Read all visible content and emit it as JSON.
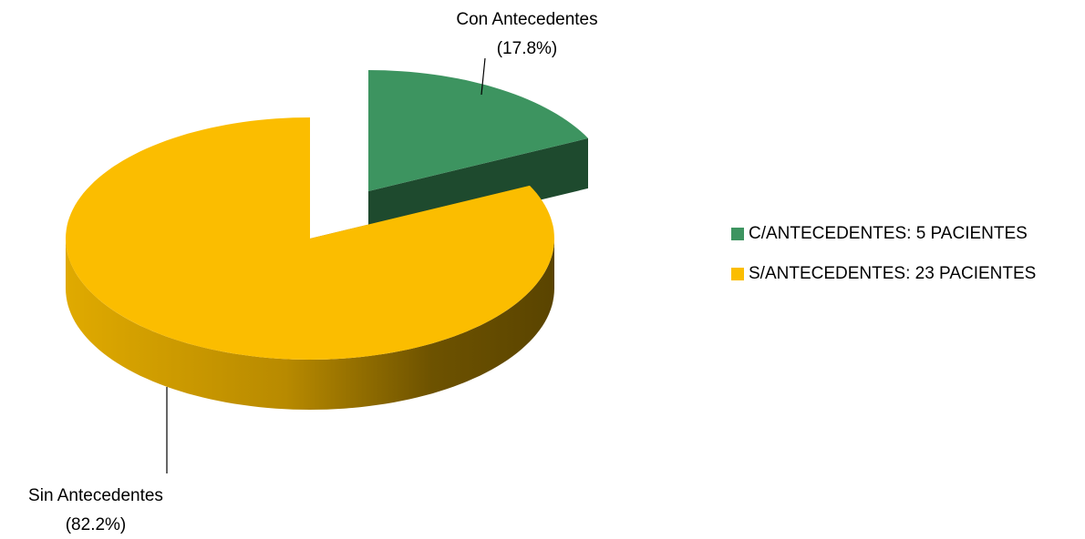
{
  "chart_data": {
    "type": "pie",
    "categories": [
      "Con Antecedentes",
      "Sin Antecedentes"
    ],
    "values": [
      17.8,
      82.2
    ],
    "value_labels": [
      "(17.8%)",
      "(82.2%)"
    ],
    "colors": [
      "#3d9460",
      "#fbbd00"
    ],
    "legend": [
      "C/ANTECEDENTES: 5 PACIENTES",
      "S/ANTECEDENTES: 23 PACIENTES"
    ],
    "legend_position": "right"
  }
}
